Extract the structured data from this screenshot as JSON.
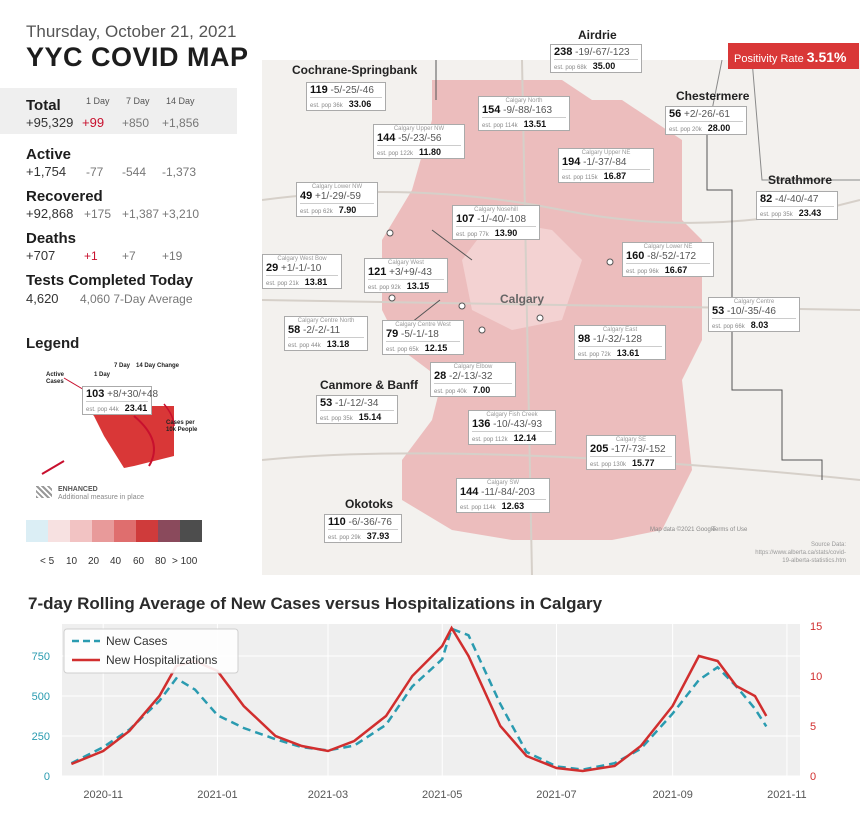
{
  "header": {
    "date": "Thursday, October 21, 2021",
    "title": "YYC COVID MAP"
  },
  "stats": {
    "col_headers": [
      "1 Day",
      "7 Day",
      "14 Day"
    ],
    "total": {
      "label": "Total",
      "value": "+95,329",
      "d1": "+99",
      "d7": "+850",
      "d14": "+1,856"
    },
    "active": {
      "label": "Active",
      "value": "+1,754",
      "d1": "-77",
      "d7": "-544",
      "d14": "-1,373"
    },
    "recovered": {
      "label": "Recovered",
      "value": "+92,868",
      "d1": "+175",
      "d7": "+1,387",
      "d14": "+3,210"
    },
    "deaths": {
      "label": "Deaths",
      "value": "+707",
      "d1": "+1",
      "d7": "+7",
      "d14": "+19"
    },
    "tests": {
      "label": "Tests Completed Today",
      "value": "4,620",
      "avg": "4,060 7-Day Average"
    }
  },
  "legend": {
    "title": "Legend",
    "active_cases": "Active Cases",
    "one_day": "1 Day",
    "seven_day": "7 Day",
    "fourteen_day": "14 Day Change",
    "sample_line": "103",
    "sample_changes": "+8/+30/+48",
    "sample_pop": "est. pop 44k",
    "sample_rate": "23.41",
    "cases_per": "Cases per 10k People",
    "enhanced": "ENHANCED",
    "enhanced_sub": "Additional measure in place",
    "scale_labels": [
      "< 5",
      "10",
      "20",
      "40",
      "60",
      "80",
      "> 100"
    ],
    "scale_colors": [
      "#dbeef5",
      "#f7e1e1",
      "#f2c3c3",
      "#e89a9a",
      "#df6e6e",
      "#cf3b3b",
      "#8a4a5c",
      "#4d4d4d"
    ]
  },
  "map": {
    "positivity_label": "Positivity Rate",
    "positivity_value": "3.51%",
    "city_label": "Calgary",
    "attribution": "Map data ©2021 Google",
    "terms": "Terms of Use",
    "source": "Source Data: https://www.alberta.ca/stats/covid-19-alberta-statistics.htm",
    "external": [
      {
        "name": "Airdrie",
        "count": "238",
        "chg": "-19/-67/-123",
        "pop": "est. pop 68k",
        "rate": "35.00"
      },
      {
        "name": "Cochrane-Springbank",
        "count": "119",
        "chg": "-5/-25/-46",
        "pop": "est. pop 36k",
        "rate": "33.06"
      },
      {
        "name": "Chestermere",
        "count": "56",
        "chg": "+2/-26/-61",
        "pop": "est. pop 20k",
        "rate": "28.00"
      },
      {
        "name": "Strathmore",
        "count": "82",
        "chg": "-4/-40/-47",
        "pop": "est. pop 35k",
        "rate": "23.43"
      },
      {
        "name": "Canmore & Banff",
        "count": "53",
        "chg": "-1/-12/-34",
        "pop": "est. pop 35k",
        "rate": "15.14"
      },
      {
        "name": "Okotoks",
        "count": "110",
        "chg": "-6/-36/-76",
        "pop": "est. pop 29k",
        "rate": "37.93"
      }
    ],
    "zones": [
      {
        "name": "Calgary North",
        "count": "154",
        "chg": "-9/-88/-163",
        "pop": "est. pop 114k",
        "rate": "13.51"
      },
      {
        "name": "Calgary Upper NW",
        "count": "144",
        "chg": "-5/-23/-56",
        "pop": "est. pop 122k",
        "rate": "11.80"
      },
      {
        "name": "Calgary Upper NE",
        "count": "194",
        "chg": "-1/-37/-84",
        "pop": "est. pop 115k",
        "rate": "16.87"
      },
      {
        "name": "Calgary Lower NW",
        "count": "49",
        "chg": "+1/-29/-59",
        "pop": "est. pop 62k",
        "rate": "7.90"
      },
      {
        "name": "Calgary Nosehill",
        "count": "107",
        "chg": "-1/-40/-108",
        "pop": "est. pop 77k",
        "rate": "13.90"
      },
      {
        "name": "Calgary Lower NE",
        "count": "160",
        "chg": "-8/-52/-172",
        "pop": "est. pop 96k",
        "rate": "16.67"
      },
      {
        "name": "Calgary West Bow",
        "count": "29",
        "chg": "+1/-1/-10",
        "pop": "est. pop 21k",
        "rate": "13.81"
      },
      {
        "name": "Calgary West",
        "count": "121",
        "chg": "+3/+9/-43",
        "pop": "est. pop 92k",
        "rate": "13.15"
      },
      {
        "name": "Calgary Centre",
        "count": "53",
        "chg": "-10/-35/-46",
        "pop": "est. pop 66k",
        "rate": "8.03"
      },
      {
        "name": "Calgary Centre North",
        "count": "58",
        "chg": "-2/-2/-11",
        "pop": "est. pop 44k",
        "rate": "13.18"
      },
      {
        "name": "Calgary Centre West",
        "count": "79",
        "chg": "-5/-1/-18",
        "pop": "est. pop 65k",
        "rate": "12.15"
      },
      {
        "name": "Calgary East",
        "count": "98",
        "chg": "-1/-32/-128",
        "pop": "est. pop 72k",
        "rate": "13.61"
      },
      {
        "name": "Calgary Elbow",
        "count": "28",
        "chg": "-2/-13/-32",
        "pop": "est. pop 40k",
        "rate": "7.00"
      },
      {
        "name": "Calgary Fish Creek",
        "count": "136",
        "chg": "-10/-43/-93",
        "pop": "est. pop 112k",
        "rate": "12.14"
      },
      {
        "name": "Calgary SE",
        "count": "205",
        "chg": "-17/-73/-152",
        "pop": "est. pop 130k",
        "rate": "15.77"
      },
      {
        "name": "Calgary SW",
        "count": "144",
        "chg": "-11/-84/-203",
        "pop": "est. pop 114k",
        "rate": "12.63"
      }
    ]
  },
  "chart_data": {
    "type": "line",
    "title": "7-day Rolling Average of New Cases versus Hospitalizations in Calgary",
    "x_ticks": [
      "2020-11",
      "2021-01",
      "2021-03",
      "2021-05",
      "2021-07",
      "2021-09",
      "2021-11"
    ],
    "y_left_ticks": [
      "0",
      "250",
      "500",
      "750"
    ],
    "y_right_ticks": [
      "0",
      "5",
      "10",
      "15"
    ],
    "ylim_left": [
      0,
      950
    ],
    "ylim_right": [
      0,
      15.2
    ],
    "legend_position": "top-left",
    "grid": true,
    "series": [
      {
        "name": "New Cases",
        "axis": "left",
        "color": "#2a9bb0",
        "style": "dashed",
        "x": [
          "2020-10-15",
          "2020-11-01",
          "2020-11-15",
          "2020-12-01",
          "2020-12-10",
          "2020-12-20",
          "2021-01-01",
          "2021-01-15",
          "2021-02-01",
          "2021-02-15",
          "2021-03-01",
          "2021-03-15",
          "2021-04-01",
          "2021-04-15",
          "2021-05-01",
          "2021-05-06",
          "2021-05-15",
          "2021-06-01",
          "2021-06-15",
          "2021-07-01",
          "2021-07-15",
          "2021-08-01",
          "2021-08-15",
          "2021-09-01",
          "2021-09-15",
          "2021-09-25",
          "2021-10-05",
          "2021-10-15",
          "2021-10-21"
        ],
        "y": [
          80,
          180,
          290,
          470,
          610,
          540,
          380,
          300,
          230,
          180,
          160,
          190,
          320,
          560,
          730,
          920,
          880,
          450,
          150,
          60,
          40,
          80,
          170,
          390,
          600,
          680,
          560,
          420,
          310
        ]
      },
      {
        "name": "New Hospitalizations",
        "axis": "right",
        "color": "#d12e2e",
        "style": "solid",
        "x": [
          "2020-10-15",
          "2020-11-01",
          "2020-11-15",
          "2020-12-01",
          "2020-12-10",
          "2020-12-20",
          "2021-01-01",
          "2021-01-15",
          "2021-02-01",
          "2021-02-15",
          "2021-03-01",
          "2021-03-15",
          "2021-04-01",
          "2021-04-15",
          "2021-05-01",
          "2021-05-06",
          "2021-05-15",
          "2021-06-01",
          "2021-06-15",
          "2021-07-01",
          "2021-07-15",
          "2021-08-01",
          "2021-08-15",
          "2021-09-01",
          "2021-09-15",
          "2021-09-25",
          "2021-10-05",
          "2021-10-15",
          "2021-10-21"
        ],
        "y": [
          1.2,
          2.5,
          4.5,
          8.0,
          11.0,
          11.5,
          10.5,
          7.0,
          4.0,
          3.0,
          2.5,
          3.5,
          6.0,
          10.0,
          13.0,
          14.8,
          12.0,
          5.0,
          2.0,
          0.8,
          0.5,
          1.0,
          3.0,
          7.0,
          12.0,
          11.5,
          9.0,
          8.0,
          6.0
        ]
      }
    ]
  }
}
